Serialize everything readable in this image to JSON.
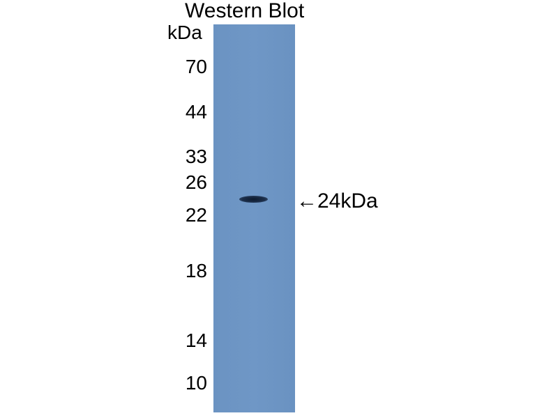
{
  "title": "Western Blot",
  "unit_label": "kDa",
  "markers": [
    "70",
    "44",
    "33",
    "26",
    "22",
    "18",
    "14",
    "10"
  ],
  "band_annotation": "←24kDa",
  "colors": {
    "membrane": "#6f97c6",
    "band": "#1b2d48"
  }
}
